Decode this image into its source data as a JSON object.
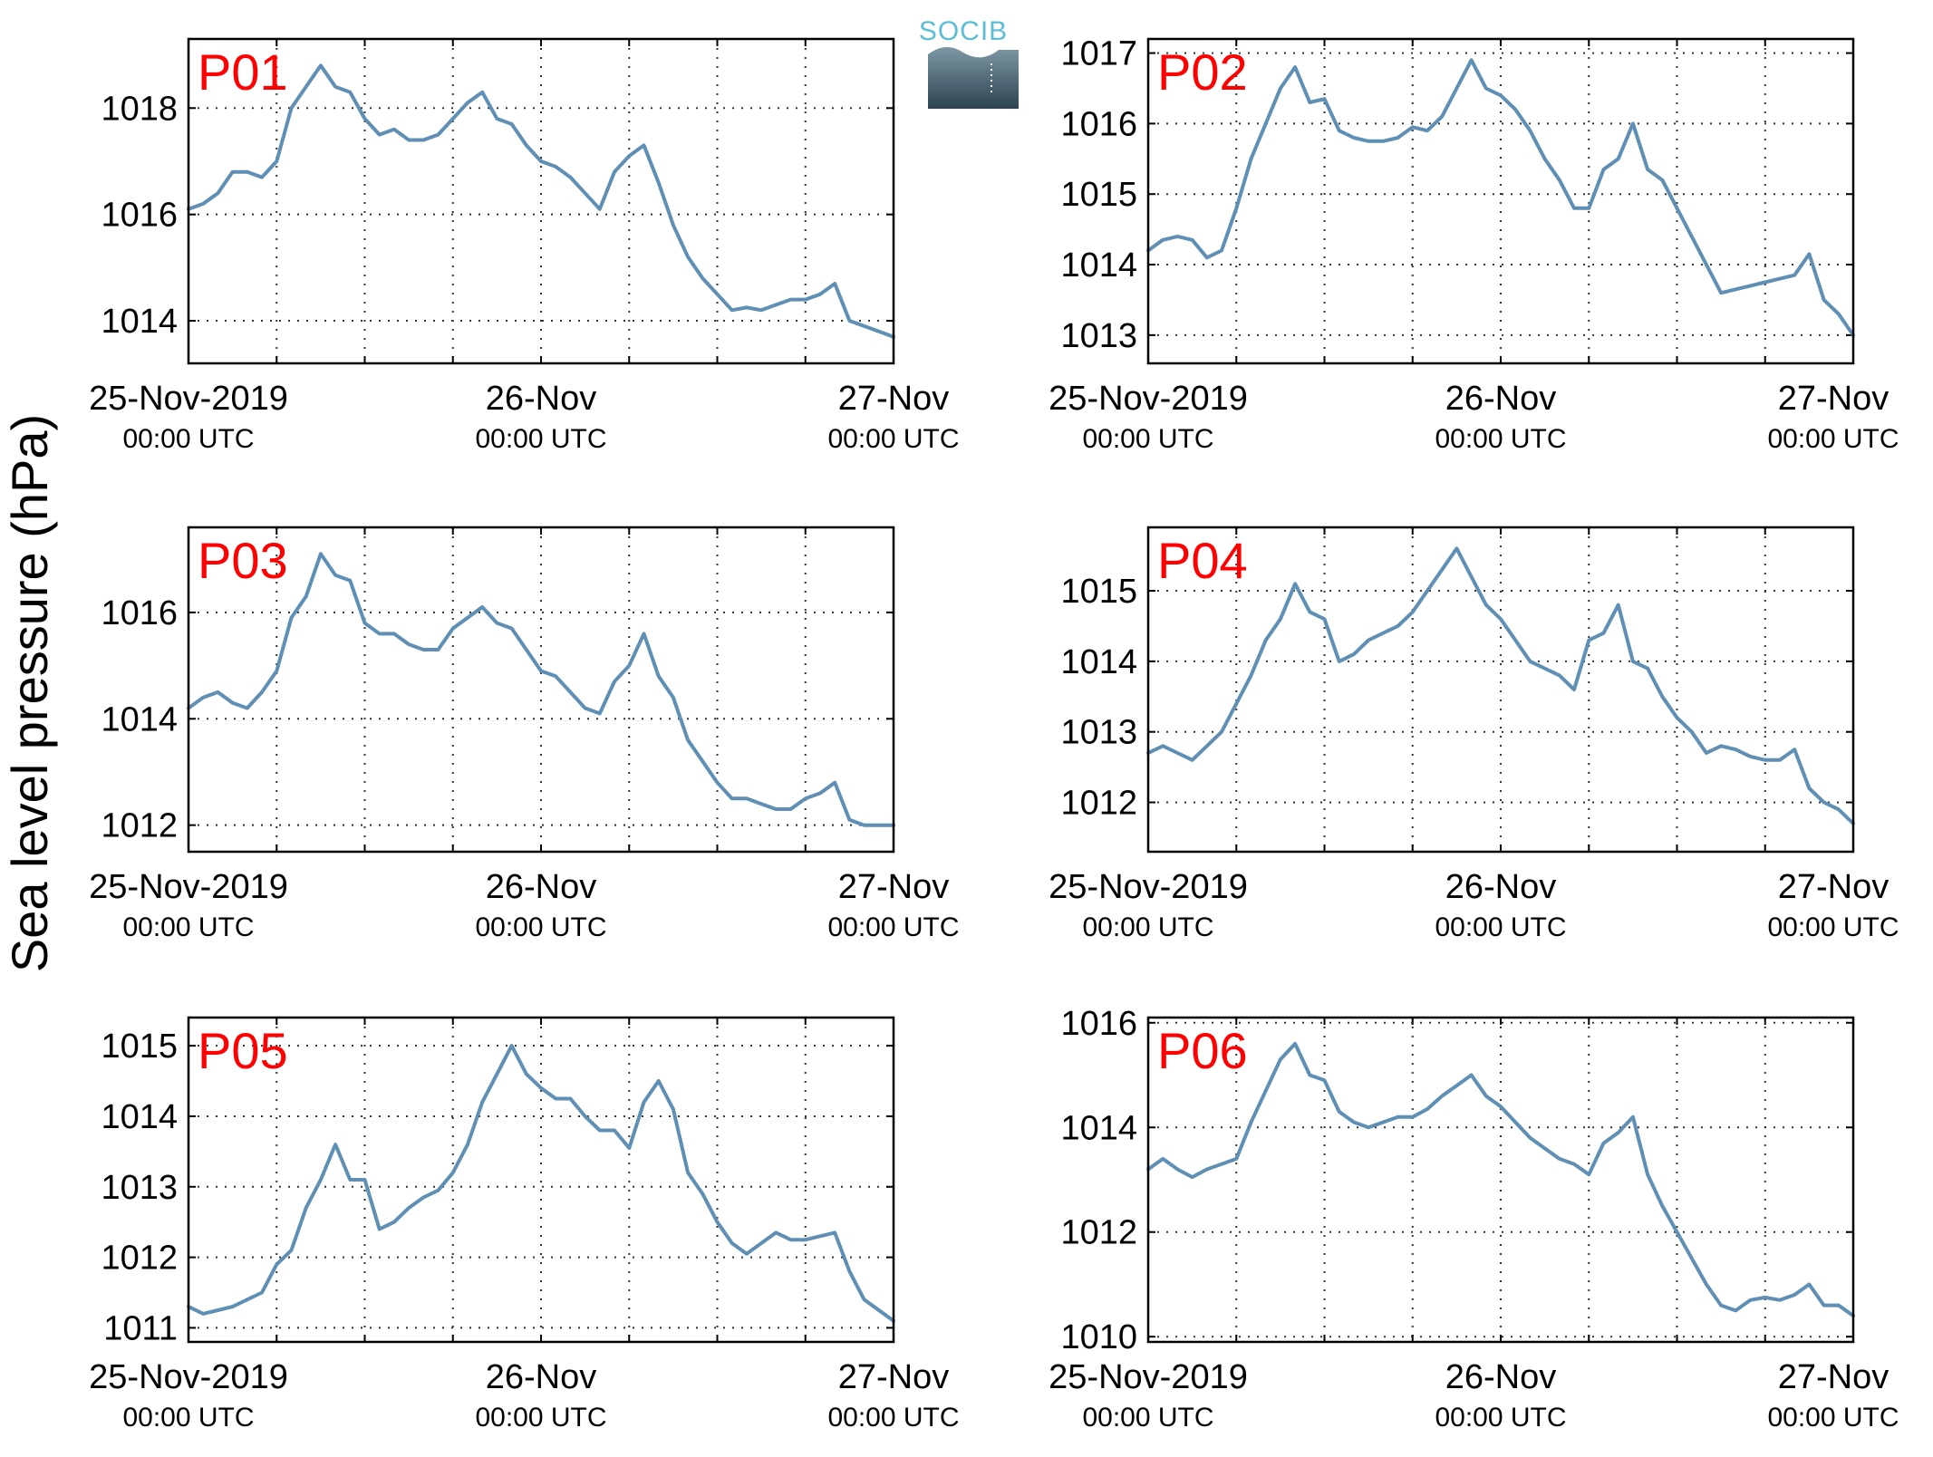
{
  "ylabel": "Sea level pressure (hPa)",
  "logo": {
    "text": "SOCIB"
  },
  "colors": {
    "line": "#5f8fb4",
    "panel_label": "#ff0000"
  },
  "xticks": [
    {
      "date": "25-Nov-2019",
      "time": "00:00 UTC"
    },
    {
      "date": "26-Nov",
      "time": "00:00 UTC"
    },
    {
      "date": "27-Nov",
      "time": "00:00 UTC"
    }
  ],
  "chart_data": [
    {
      "type": "line",
      "label": "P01",
      "ylim": [
        1013.2,
        1019.3
      ],
      "yticks": [
        1014,
        1016,
        1018
      ],
      "xlim": [
        0,
        48
      ],
      "grid": true,
      "x": [
        0,
        1,
        2,
        3,
        4,
        5,
        6,
        7,
        8,
        9,
        10,
        11,
        12,
        13,
        14,
        15,
        16,
        17,
        18,
        19,
        20,
        21,
        22,
        23,
        24,
        25,
        26,
        27,
        28,
        29,
        30,
        31,
        32,
        33,
        34,
        35,
        36,
        37,
        38,
        39,
        40,
        41,
        42,
        43,
        44,
        45,
        46,
        47,
        48
      ],
      "values": [
        1016.1,
        1016.2,
        1016.4,
        1016.8,
        1016.8,
        1016.7,
        1017.0,
        1018.0,
        1018.4,
        1018.8,
        1018.4,
        1018.3,
        1017.8,
        1017.5,
        1017.6,
        1017.4,
        1017.4,
        1017.5,
        1017.8,
        1018.1,
        1018.3,
        1017.8,
        1017.7,
        1017.3,
        1017.0,
        1016.9,
        1016.7,
        1016.4,
        1016.1,
        1016.8,
        1017.1,
        1017.3,
        1016.6,
        1015.8,
        1015.2,
        1014.8,
        1014.5,
        1014.2,
        1014.25,
        1014.2,
        1014.3,
        1014.4,
        1014.4,
        1014.5,
        1014.7,
        1014.0,
        1013.9,
        1013.8,
        1013.7
      ]
    },
    {
      "type": "line",
      "label": "P02",
      "ylim": [
        1012.6,
        1017.2
      ],
      "yticks": [
        1013,
        1014,
        1015,
        1016,
        1017
      ],
      "xlim": [
        0,
        48
      ],
      "grid": true,
      "x": [
        0,
        1,
        2,
        3,
        4,
        5,
        6,
        7,
        8,
        9,
        10,
        11,
        12,
        13,
        14,
        15,
        16,
        17,
        18,
        19,
        20,
        21,
        22,
        23,
        24,
        25,
        26,
        27,
        28,
        29,
        30,
        31,
        32,
        33,
        34,
        35,
        36,
        37,
        38,
        39,
        40,
        41,
        42,
        43,
        44,
        45,
        46,
        47,
        48
      ],
      "values": [
        1014.2,
        1014.35,
        1014.4,
        1014.35,
        1014.1,
        1014.2,
        1014.8,
        1015.5,
        1016.0,
        1016.5,
        1016.8,
        1016.3,
        1016.35,
        1015.9,
        1015.8,
        1015.75,
        1015.75,
        1015.8,
        1015.95,
        1015.9,
        1016.1,
        1016.5,
        1016.9,
        1016.5,
        1016.4,
        1016.2,
        1015.9,
        1015.5,
        1015.2,
        1014.8,
        1014.8,
        1015.35,
        1015.5,
        1016.0,
        1015.35,
        1015.2,
        1014.8,
        1014.4,
        1014.0,
        1013.6,
        1013.65,
        1013.7,
        1013.75,
        1013.8,
        1013.85,
        1014.15,
        1013.5,
        1013.3,
        1013.0
      ]
    },
    {
      "type": "line",
      "label": "P03",
      "ylim": [
        1011.5,
        1017.6
      ],
      "yticks": [
        1012,
        1014,
        1016
      ],
      "xlim": [
        0,
        48
      ],
      "grid": true,
      "x": [
        0,
        1,
        2,
        3,
        4,
        5,
        6,
        7,
        8,
        9,
        10,
        11,
        12,
        13,
        14,
        15,
        16,
        17,
        18,
        19,
        20,
        21,
        22,
        23,
        24,
        25,
        26,
        27,
        28,
        29,
        30,
        31,
        32,
        33,
        34,
        35,
        36,
        37,
        38,
        39,
        40,
        41,
        42,
        43,
        44,
        45,
        46,
        47,
        48
      ],
      "values": [
        1014.2,
        1014.4,
        1014.5,
        1014.3,
        1014.2,
        1014.5,
        1014.9,
        1015.9,
        1016.3,
        1017.1,
        1016.7,
        1016.6,
        1015.8,
        1015.6,
        1015.6,
        1015.4,
        1015.3,
        1015.3,
        1015.7,
        1015.9,
        1016.1,
        1015.8,
        1015.7,
        1015.3,
        1014.9,
        1014.8,
        1014.5,
        1014.2,
        1014.1,
        1014.7,
        1015.0,
        1015.6,
        1014.8,
        1014.4,
        1013.6,
        1013.2,
        1012.8,
        1012.5,
        1012.5,
        1012.4,
        1012.3,
        1012.3,
        1012.5,
        1012.6,
        1012.8,
        1012.1,
        1012.0,
        1012.0,
        1012.0
      ]
    },
    {
      "type": "line",
      "label": "P04",
      "ylim": [
        1011.3,
        1015.9
      ],
      "yticks": [
        1012,
        1013,
        1014,
        1015
      ],
      "xlim": [
        0,
        48
      ],
      "grid": true,
      "x": [
        0,
        1,
        2,
        3,
        4,
        5,
        6,
        7,
        8,
        9,
        10,
        11,
        12,
        13,
        14,
        15,
        16,
        17,
        18,
        19,
        20,
        21,
        22,
        23,
        24,
        25,
        26,
        27,
        28,
        29,
        30,
        31,
        32,
        33,
        34,
        35,
        36,
        37,
        38,
        39,
        40,
        41,
        42,
        43,
        44,
        45,
        46,
        47,
        48
      ],
      "values": [
        1012.7,
        1012.8,
        1012.7,
        1012.6,
        1012.8,
        1013.0,
        1013.4,
        1013.8,
        1014.3,
        1014.6,
        1015.1,
        1014.7,
        1014.6,
        1014.0,
        1014.1,
        1014.3,
        1014.4,
        1014.5,
        1014.7,
        1015.0,
        1015.3,
        1015.6,
        1015.2,
        1014.8,
        1014.6,
        1014.3,
        1014.0,
        1013.9,
        1013.8,
        1013.6,
        1014.3,
        1014.4,
        1014.8,
        1014.0,
        1013.9,
        1013.5,
        1013.2,
        1013.0,
        1012.7,
        1012.8,
        1012.75,
        1012.65,
        1012.6,
        1012.6,
        1012.75,
        1012.2,
        1012.0,
        1011.9,
        1011.7
      ]
    },
    {
      "type": "line",
      "label": "P05",
      "ylim": [
        1010.8,
        1015.4
      ],
      "yticks": [
        1011,
        1012,
        1013,
        1014,
        1015
      ],
      "xlim": [
        0,
        48
      ],
      "grid": true,
      "x": [
        0,
        1,
        2,
        3,
        4,
        5,
        6,
        7,
        8,
        9,
        10,
        11,
        12,
        13,
        14,
        15,
        16,
        17,
        18,
        19,
        20,
        21,
        22,
        23,
        24,
        25,
        26,
        27,
        28,
        29,
        30,
        31,
        32,
        33,
        34,
        35,
        36,
        37,
        38,
        39,
        40,
        41,
        42,
        43,
        44,
        45,
        46,
        47,
        48
      ],
      "values": [
        1011.3,
        1011.2,
        1011.25,
        1011.3,
        1011.4,
        1011.5,
        1011.9,
        1012.1,
        1012.7,
        1013.1,
        1013.6,
        1013.1,
        1013.1,
        1012.4,
        1012.5,
        1012.7,
        1012.85,
        1012.95,
        1013.2,
        1013.6,
        1014.2,
        1014.6,
        1015.0,
        1014.6,
        1014.4,
        1014.25,
        1014.25,
        1014.0,
        1013.8,
        1013.8,
        1013.55,
        1014.2,
        1014.5,
        1014.1,
        1013.2,
        1012.9,
        1012.5,
        1012.2,
        1012.05,
        1012.2,
        1012.35,
        1012.25,
        1012.25,
        1012.3,
        1012.35,
        1011.8,
        1011.4,
        1011.25,
        1011.1
      ]
    },
    {
      "type": "line",
      "label": "P06",
      "ylim": [
        1009.9,
        1016.1
      ],
      "yticks": [
        1010,
        1012,
        1014,
        1016
      ],
      "xlim": [
        0,
        48
      ],
      "grid": true,
      "x": [
        0,
        1,
        2,
        3,
        4,
        5,
        6,
        7,
        8,
        9,
        10,
        11,
        12,
        13,
        14,
        15,
        16,
        17,
        18,
        19,
        20,
        21,
        22,
        23,
        24,
        25,
        26,
        27,
        28,
        29,
        30,
        31,
        32,
        33,
        34,
        35,
        36,
        37,
        38,
        39,
        40,
        41,
        42,
        43,
        44,
        45,
        46,
        47,
        48
      ],
      "values": [
        1013.2,
        1013.4,
        1013.2,
        1013.05,
        1013.2,
        1013.3,
        1013.4,
        1014.1,
        1014.7,
        1015.3,
        1015.6,
        1015.0,
        1014.9,
        1014.3,
        1014.1,
        1014.0,
        1014.1,
        1014.2,
        1014.2,
        1014.35,
        1014.6,
        1014.8,
        1015.0,
        1014.6,
        1014.4,
        1014.1,
        1013.8,
        1013.6,
        1013.4,
        1013.3,
        1013.1,
        1013.7,
        1013.9,
        1014.2,
        1013.1,
        1012.5,
        1012.0,
        1011.5,
        1011.0,
        1010.6,
        1010.5,
        1010.7,
        1010.75,
        1010.7,
        1010.8,
        1011.0,
        1010.6,
        1010.6,
        1010.4
      ]
    }
  ]
}
